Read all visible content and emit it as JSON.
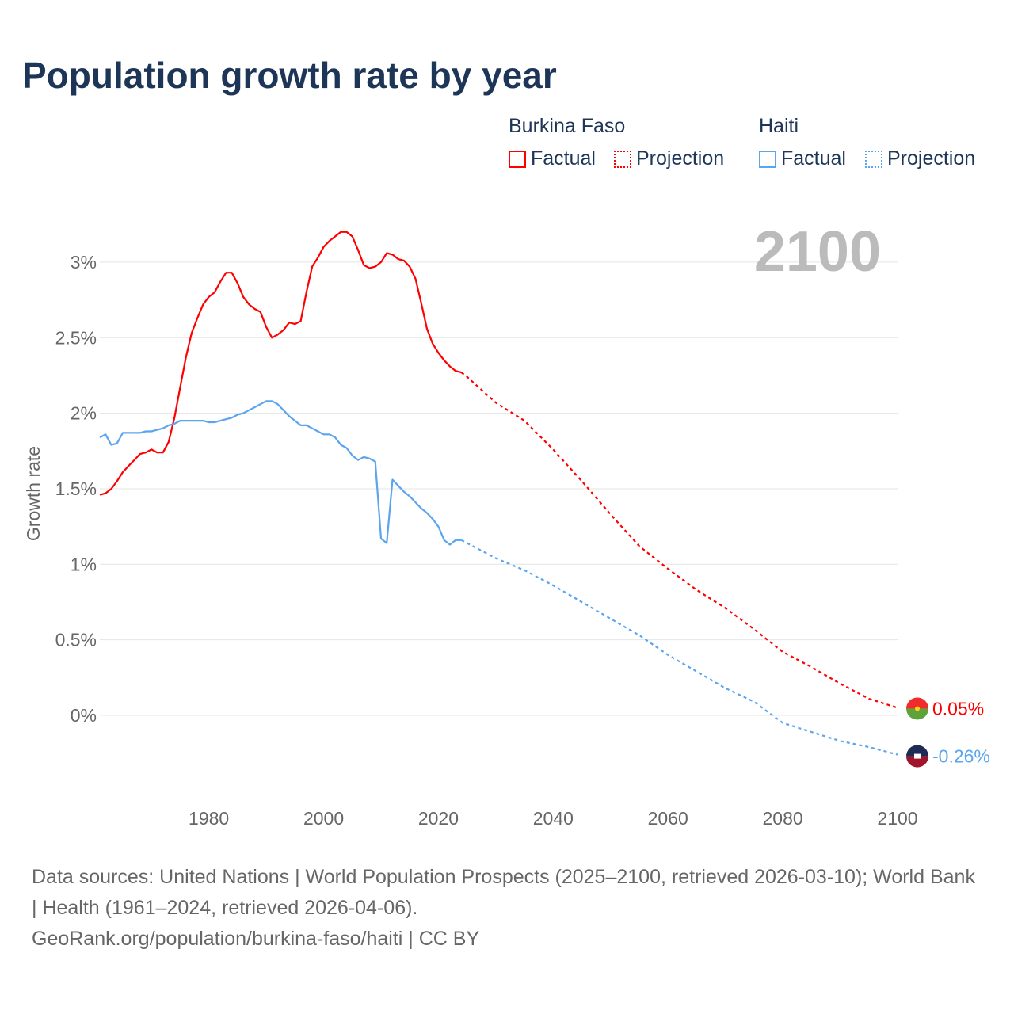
{
  "title": "Population growth rate by year",
  "legend": {
    "groups": [
      {
        "name": "Burkina Faso",
        "factual": "Factual",
        "projection": "Projection",
        "color": "#ff0000"
      },
      {
        "name": "Haiti",
        "factual": "Factual",
        "projection": "Projection",
        "color": "#5aa5ee"
      }
    ]
  },
  "year_label": "2100",
  "footer": {
    "sources": "Data sources: United Nations | World Population Prospects (2025–2100, retrieved 2026-03-10); World Bank | Health (1961–2024, retrieved 2026-04-06).",
    "credit": "GeoRank.org/population/burkina-faso/haiti | CC BY"
  },
  "chart_data": {
    "type": "line",
    "title": "Population growth rate by year",
    "xlabel": "",
    "ylabel": "Growth rate",
    "xlim": [
      1961,
      2100
    ],
    "ylim": [
      -0.45,
      3.35
    ],
    "xticks": [
      1980,
      2000,
      2020,
      2040,
      2060,
      2080,
      2100
    ],
    "xtick_labels": [
      "1980",
      "2000",
      "2020",
      "2040",
      "2060",
      "2080",
      "2100"
    ],
    "yticks": [
      0,
      0.5,
      1,
      1.5,
      2,
      2.5,
      3
    ],
    "ytick_labels": [
      "0%",
      "0.5%",
      "1%",
      "1.5%",
      "2%",
      "2.5%",
      "3%"
    ],
    "grid": true,
    "legend_position": "top-right",
    "series": [
      {
        "name": "Burkina Faso",
        "kind": "factual",
        "x_start": 1961,
        "values": [
          1.46,
          1.47,
          1.5,
          1.55,
          1.61,
          1.65,
          1.69,
          1.73,
          1.74,
          1.76,
          1.74,
          1.74,
          1.81,
          1.97,
          2.17,
          2.37,
          2.53,
          2.63,
          2.72,
          2.77,
          2.8,
          2.87,
          2.93,
          2.93,
          2.86,
          2.77,
          2.72,
          2.69,
          2.67,
          2.57,
          2.5,
          2.52,
          2.55,
          2.6,
          2.59,
          2.61,
          2.8,
          2.97,
          3.03,
          3.1,
          3.14,
          3.17,
          3.2,
          3.2,
          3.17,
          3.08,
          2.98,
          2.96,
          2.97,
          3.0,
          3.06,
          3.05,
          3.02,
          3.01,
          2.97,
          2.89,
          2.73,
          2.56,
          2.46,
          2.4,
          2.35,
          2.31,
          2.28,
          2.27
        ]
      },
      {
        "name": "Burkina Faso",
        "kind": "projection",
        "x": [
          2024,
          2025,
          2030,
          2035,
          2040,
          2045,
          2050,
          2055,
          2060,
          2065,
          2070,
          2075,
          2080,
          2085,
          2090,
          2095,
          2100
        ],
        "values": [
          2.27,
          2.24,
          2.07,
          1.95,
          1.76,
          1.55,
          1.33,
          1.12,
          0.97,
          0.83,
          0.71,
          0.57,
          0.42,
          0.32,
          0.21,
          0.11,
          0.05
        ]
      },
      {
        "name": "Haiti",
        "kind": "factual",
        "x_start": 1961,
        "values": [
          1.84,
          1.86,
          1.79,
          1.8,
          1.87,
          1.87,
          1.87,
          1.87,
          1.88,
          1.88,
          1.89,
          1.9,
          1.92,
          1.93,
          1.95,
          1.95,
          1.95,
          1.95,
          1.95,
          1.94,
          1.94,
          1.95,
          1.96,
          1.97,
          1.99,
          2.0,
          2.02,
          2.04,
          2.06,
          2.08,
          2.08,
          2.06,
          2.02,
          1.98,
          1.95,
          1.92,
          1.92,
          1.9,
          1.88,
          1.86,
          1.86,
          1.84,
          1.79,
          1.77,
          1.72,
          1.69,
          1.71,
          1.7,
          1.68,
          1.17,
          1.14,
          1.56,
          1.52,
          1.48,
          1.45,
          1.41,
          1.37,
          1.34,
          1.3,
          1.25,
          1.16,
          1.13,
          1.16,
          1.16
        ]
      },
      {
        "name": "Haiti",
        "kind": "projection",
        "x": [
          2024,
          2025,
          2030,
          2035,
          2040,
          2045,
          2050,
          2055,
          2060,
          2065,
          2070,
          2075,
          2080,
          2085,
          2090,
          2095,
          2100
        ],
        "values": [
          1.16,
          1.14,
          1.04,
          0.96,
          0.86,
          0.75,
          0.64,
          0.53,
          0.4,
          0.29,
          0.18,
          0.09,
          -0.05,
          -0.11,
          -0.17,
          -0.21,
          -0.26
        ]
      }
    ],
    "end_labels": [
      {
        "name": "Burkina Faso",
        "text": "0.05%",
        "value": 0.05
      },
      {
        "name": "Haiti",
        "text": "-0.26%",
        "value": -0.26
      }
    ]
  }
}
